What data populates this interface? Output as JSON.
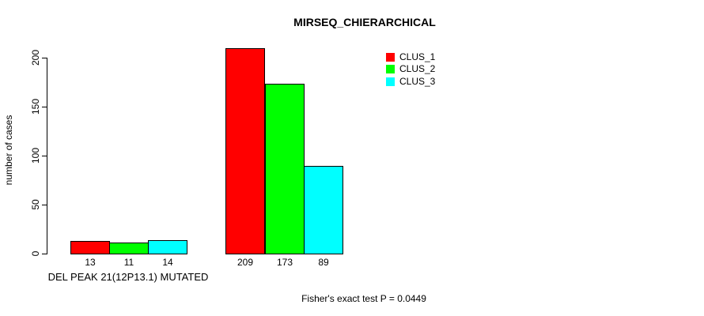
{
  "title": "MIRSEQ_CHIERARCHICAL",
  "y_axis": {
    "label": "number of cases"
  },
  "x_axis": {
    "group_label": "DEL PEAK 21(12P13.1) MUTATED"
  },
  "footer": "Fisher's exact test P = 0.0449",
  "colors": {
    "axis": "#000000",
    "background": "#ffffff"
  },
  "chart_data": {
    "type": "bar",
    "title": "MIRSEQ_CHIERARCHICAL",
    "xlabel": "",
    "ylabel": "number of cases",
    "ylim": [
      0,
      215
    ],
    "yticks": [
      0,
      50,
      100,
      150,
      200
    ],
    "categories": [
      "DEL PEAK 21(12P13.1) MUTATED",
      ""
    ],
    "series": [
      {
        "name": "CLUS_1",
        "color": "#ff0000",
        "values": [
          13,
          209
        ]
      },
      {
        "name": "CLUS_2",
        "color": "#00ff00",
        "values": [
          11,
          173
        ]
      },
      {
        "name": "CLUS_3",
        "color": "#00ffff",
        "values": [
          14,
          89
        ]
      }
    ],
    "bar_value_labels": [
      [
        13,
        11,
        14
      ],
      [
        209,
        173,
        89
      ]
    ],
    "legend_entries": [
      "CLUS_1",
      "CLUS_2",
      "CLUS_3"
    ],
    "legend_position": "top-right",
    "grid": false,
    "annotation": "Fisher's exact test P = 0.0449"
  }
}
